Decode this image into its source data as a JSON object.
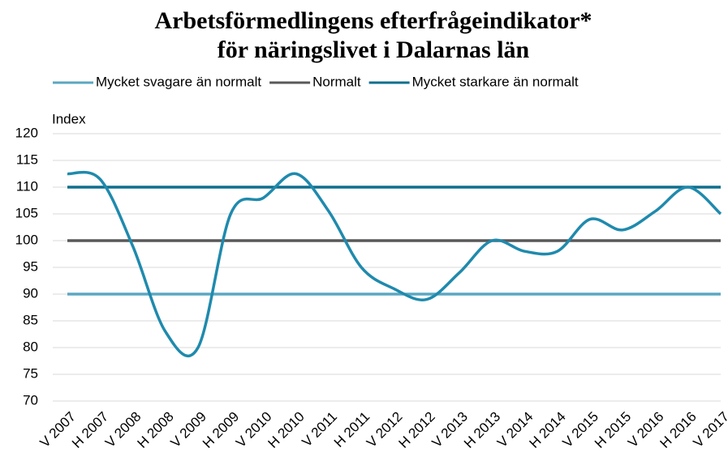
{
  "chart_data": {
    "type": "line",
    "title": "Arbetsförmedlingens efterfrågeindikator*",
    "subtitle": "för näringslivet i Dalarnas län",
    "y_label": "Index",
    "categories": [
      "V 2007",
      "H 2007",
      "V 2008",
      "H 2008",
      "V 2009",
      "H 2009",
      "V 2010",
      "H 2010",
      "V 2011",
      "H 2011",
      "V 2012",
      "H 2012",
      "V 2013",
      "H 2013",
      "V 2014",
      "H 2014",
      "V 2015",
      "H 2015",
      "V 2016",
      "H 2016",
      "V 2017"
    ],
    "series": [
      {
        "name": "Mycket svagare än normalt",
        "color": "#5ba7c2",
        "values": [
          90,
          90,
          90,
          90,
          90,
          90,
          90,
          90,
          90,
          90,
          90,
          90,
          90,
          90,
          90,
          90,
          90,
          90,
          90,
          90,
          90
        ]
      },
      {
        "name": "Normalt",
        "color": "#595959",
        "values": [
          100,
          100,
          100,
          100,
          100,
          100,
          100,
          100,
          100,
          100,
          100,
          100,
          100,
          100,
          100,
          100,
          100,
          100,
          100,
          100,
          100
        ]
      },
      {
        "name": "Mycket starkare än normalt",
        "color": "#0e6f8d",
        "values": [
          110,
          110,
          110,
          110,
          110,
          110,
          110,
          110,
          110,
          110,
          110,
          110,
          110,
          110,
          110,
          110,
          110,
          110,
          110,
          110,
          110
        ]
      },
      {
        "color": "#1f8aad",
        "values": [
          112.5,
          111.5,
          99,
          83,
          80,
          105,
          108,
          112.5,
          105.5,
          95,
          91,
          89,
          94,
          100,
          98,
          98,
          104,
          102,
          105.5,
          110,
          105
        ]
      }
    ],
    "ylim": [
      70,
      120
    ],
    "yticks": [
      70,
      75,
      80,
      85,
      90,
      95,
      100,
      105,
      110,
      115,
      120
    ],
    "grid": true
  }
}
